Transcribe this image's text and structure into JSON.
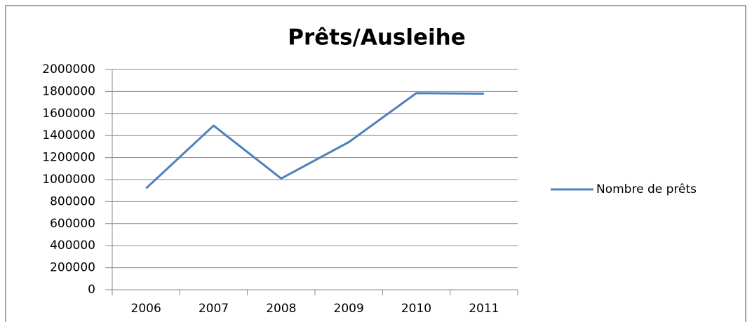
{
  "chart_data": {
    "type": "line",
    "title": "Prêts/Ausleihe",
    "categories": [
      "2006",
      "2007",
      "2008",
      "2009",
      "2010",
      "2011"
    ],
    "series": [
      {
        "name": "Nombre de prêts",
        "color": "#4f81bd",
        "values": [
          920000,
          1490000,
          1010000,
          1340000,
          1785000,
          1780000
        ]
      }
    ],
    "ylim": [
      0,
      2000000
    ],
    "yticks": [
      0,
      200000,
      400000,
      600000,
      800000,
      1000000,
      1200000,
      1400000,
      1600000,
      1800000,
      2000000
    ],
    "grid": true,
    "legend": "right"
  }
}
